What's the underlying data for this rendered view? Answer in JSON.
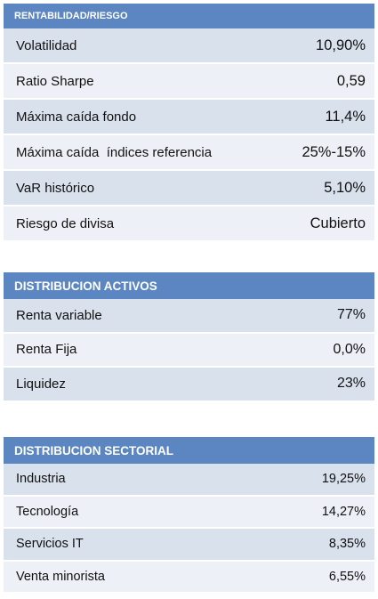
{
  "rentabilidad_riesgo": {
    "title": "RENTABILIDAD/RIESGO",
    "rows": [
      {
        "label": "Volatilidad",
        "value": "10,90%"
      },
      {
        "label": "Ratio Sharpe",
        "value": "0,59"
      },
      {
        "label": "Máxima caída fondo",
        "value": "11,4%"
      },
      {
        "label": "Máxima caída  índices referencia",
        "value": "25%-15%"
      },
      {
        "label": "VaR histórico",
        "value": "5,10%"
      },
      {
        "label": "Riesgo de divisa",
        "value": "Cubierto"
      }
    ]
  },
  "distribucion_activos": {
    "title": "DISTRIBUCION ACTIVOS",
    "rows": [
      {
        "label": "Renta variable",
        "value": "77%"
      },
      {
        "label": "Renta Fija",
        "value": "0,0%"
      },
      {
        "label": "Liquidez",
        "value": "23%"
      }
    ]
  },
  "distribucion_sectorial": {
    "title": "DISTRIBUCION SECTORIAL",
    "rows": [
      {
        "label": "Industria",
        "value": "19,25%"
      },
      {
        "label": "Tecnología",
        "value": "14,27%"
      },
      {
        "label": "Servicios IT",
        "value": "8,35%"
      },
      {
        "label": "Venta minorista",
        "value": "6,55%"
      }
    ]
  },
  "colors": {
    "header": "#5b86c1",
    "row_odd": "#d9e1ed",
    "row_even": "#edf0f6"
  }
}
